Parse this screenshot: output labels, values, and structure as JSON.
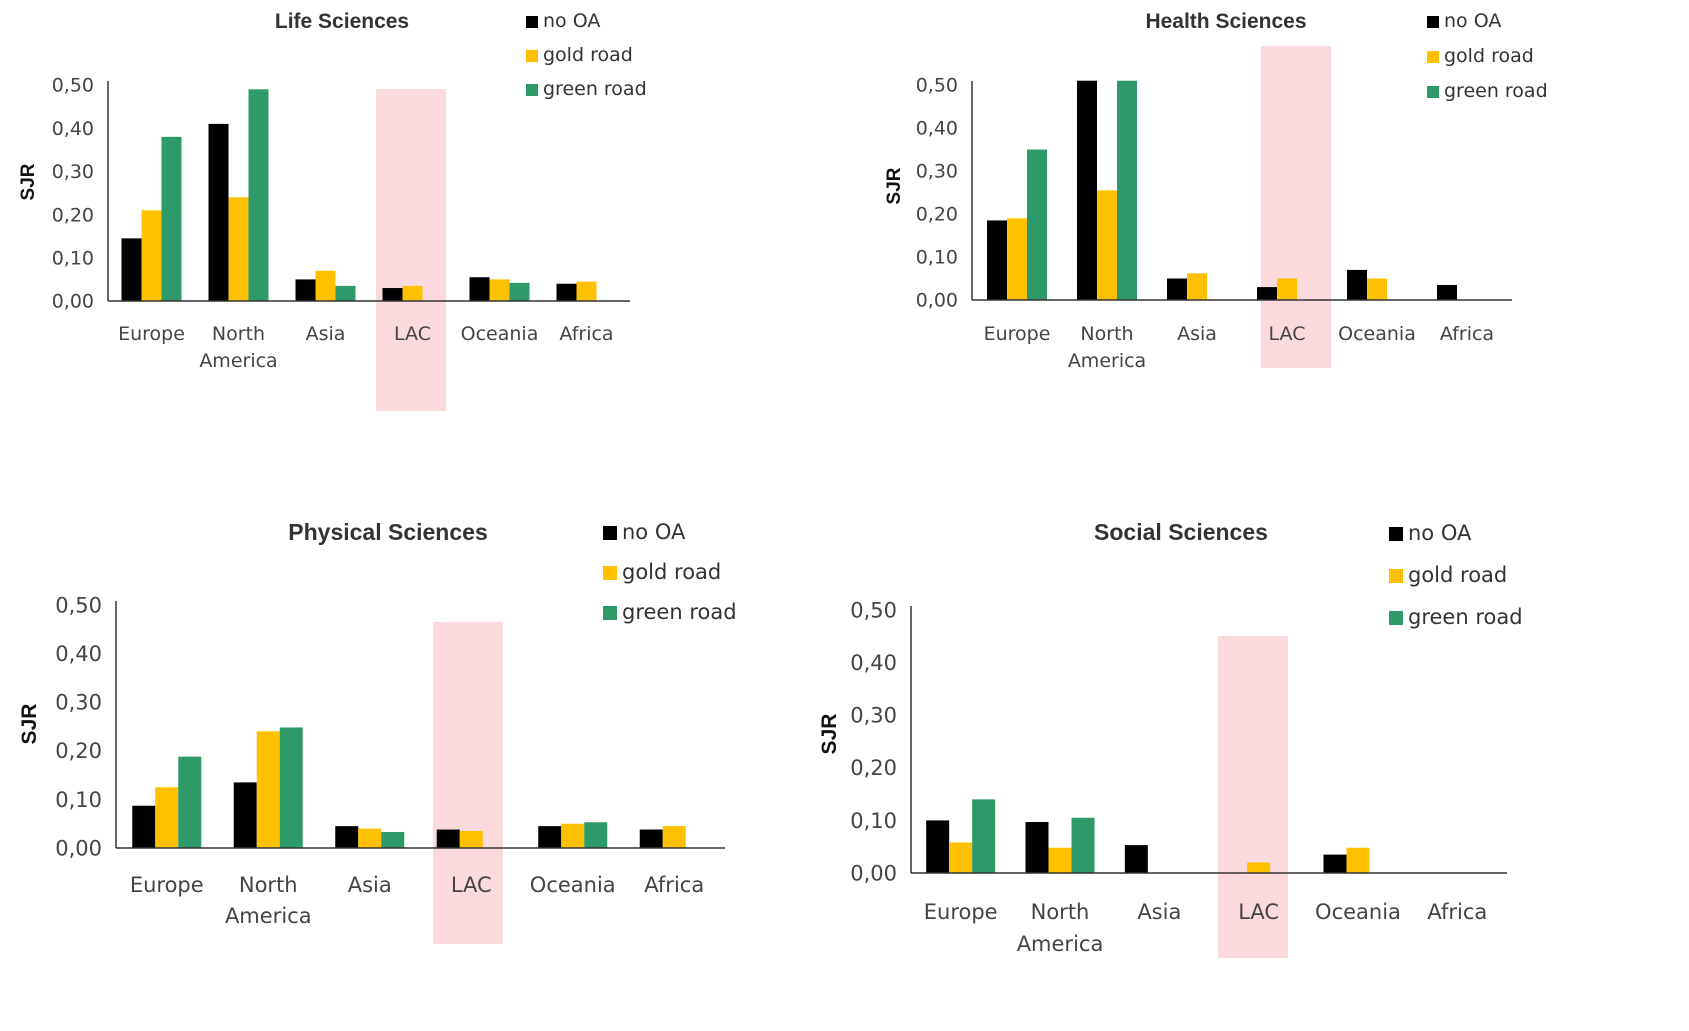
{
  "chart_data": [
    {
      "type": "bar",
      "title": "Life Sciences",
      "ylabel": "SJR",
      "xlabel": "",
      "ylim": [
        0,
        0.5
      ],
      "yticks": [
        "0,00",
        "0,10",
        "0,20",
        "0,30",
        "0,40",
        "0,50"
      ],
      "categories": [
        [
          "Europe"
        ],
        [
          "North",
          "America"
        ],
        [
          "Asia"
        ],
        [
          "LAC"
        ],
        [
          "Oceania"
        ],
        [
          "Africa"
        ]
      ],
      "highlight_category": "LAC",
      "legend_position": "top-right",
      "series": [
        {
          "name": "no OA",
          "color": "#000000",
          "values": [
            0.145,
            0.41,
            0.05,
            0.03,
            0.055,
            0.04
          ]
        },
        {
          "name": "gold road",
          "color": "#FFC000",
          "values": [
            0.21,
            0.24,
            0.07,
            0.035,
            0.05,
            0.045
          ]
        },
        {
          "name": "green road",
          "color": "#2E9A6A",
          "values": [
            0.38,
            0.49,
            0.035,
            null,
            0.042,
            null
          ]
        }
      ]
    },
    {
      "type": "bar",
      "title": "Health Sciences",
      "ylabel": "SJR",
      "xlabel": "",
      "ylim": [
        0,
        0.5
      ],
      "yticks": [
        "0,00",
        "0,10",
        "0,20",
        "0,30",
        "0,40",
        "0,50"
      ],
      "categories": [
        [
          "Europe"
        ],
        [
          "North",
          "America"
        ],
        [
          "Asia"
        ],
        [
          "LAC"
        ],
        [
          "Oceania"
        ],
        [
          "Africa"
        ]
      ],
      "highlight_category": "LAC",
      "legend_position": "top-right",
      "series": [
        {
          "name": "no OA",
          "color": "#000000",
          "values": [
            0.185,
            0.51,
            0.05,
            0.03,
            0.07,
            0.035
          ]
        },
        {
          "name": "gold road",
          "color": "#FFC000",
          "values": [
            0.19,
            0.255,
            0.062,
            0.05,
            0.05,
            null
          ]
        },
        {
          "name": "green road",
          "color": "#2E9A6A",
          "values": [
            0.35,
            0.51,
            null,
            null,
            null,
            null
          ]
        }
      ]
    },
    {
      "type": "bar",
      "title": "Physical Sciences",
      "ylabel": "SJR",
      "xlabel": "",
      "ylim": [
        0,
        0.5
      ],
      "yticks": [
        "0,00",
        "0,10",
        "0,20",
        "0,30",
        "0,40",
        "0,50"
      ],
      "categories": [
        [
          "Europe"
        ],
        [
          "North",
          "America"
        ],
        [
          "Asia"
        ],
        [
          "LAC"
        ],
        [
          "Oceania"
        ],
        [
          "Africa"
        ]
      ],
      "highlight_category": "LAC",
      "legend_position": "top-right",
      "series": [
        {
          "name": "no OA",
          "color": "#000000",
          "values": [
            0.087,
            0.135,
            0.045,
            0.038,
            0.045,
            0.038
          ]
        },
        {
          "name": "gold road",
          "color": "#FFC000",
          "values": [
            0.125,
            0.24,
            0.04,
            0.035,
            0.05,
            0.045
          ]
        },
        {
          "name": "green road",
          "color": "#2E9A6A",
          "values": [
            0.188,
            0.248,
            0.033,
            null,
            0.053,
            null
          ]
        }
      ]
    },
    {
      "type": "bar",
      "title": "Social Sciences",
      "ylabel": "SJR",
      "xlabel": "",
      "ylim": [
        0,
        0.5
      ],
      "yticks": [
        "0,00",
        "0,10",
        "0,20",
        "0,30",
        "0,40",
        "0,50"
      ],
      "categories": [
        [
          "Europe"
        ],
        [
          "North",
          "America"
        ],
        [
          "Asia"
        ],
        [
          "LAC"
        ],
        [
          "Oceania"
        ],
        [
          "Africa"
        ]
      ],
      "highlight_category": "LAC",
      "legend_position": "top-right",
      "series": [
        {
          "name": "no OA",
          "color": "#000000",
          "values": [
            0.1,
            0.097,
            0.053,
            null,
            0.035,
            null
          ]
        },
        {
          "name": "gold road",
          "color": "#FFC000",
          "values": [
            0.058,
            0.048,
            null,
            0.02,
            0.048,
            null
          ]
        },
        {
          "name": "green road",
          "color": "#2E9A6A",
          "values": [
            0.14,
            0.105,
            null,
            null,
            null,
            null
          ]
        }
      ]
    }
  ],
  "colors": {
    "highlight": "#FADADD",
    "axis": "#333333"
  }
}
